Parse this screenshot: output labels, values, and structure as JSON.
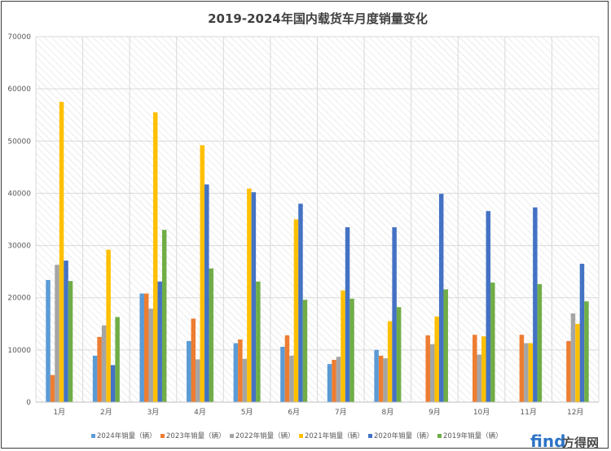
{
  "chart_data": {
    "type": "bar",
    "title": "2019-2024年国内载货车月度销量变化",
    "xlabel": "",
    "ylabel": "",
    "ylim": [
      0,
      70000
    ],
    "yticks": [
      0,
      10000,
      20000,
      30000,
      40000,
      50000,
      60000,
      70000
    ],
    "grid": true,
    "legend_position": "bottom",
    "categories": [
      "1月",
      "2月",
      "3月",
      "4月",
      "5月",
      "6月",
      "7月",
      "8月",
      "9月",
      "10月",
      "11月",
      "12月"
    ],
    "series": [
      {
        "name": "2024年销量（辆）",
        "color": "#5b9bd5",
        "values": [
          23400,
          8900,
          20800,
          11700,
          11300,
          10600,
          7300,
          10000,
          null,
          null,
          null,
          null
        ]
      },
      {
        "name": "2023年销量（辆）",
        "color": "#ed7d31",
        "values": [
          5200,
          12500,
          20800,
          16000,
          12000,
          12800,
          8100,
          8900,
          12800,
          12900,
          12900,
          11700
        ]
      },
      {
        "name": "2022年销量（辆）",
        "color": "#a5a5a5",
        "values": [
          26300,
          14700,
          17900,
          8200,
          8300,
          8900,
          8700,
          8400,
          11100,
          9100,
          11300,
          17000
        ]
      },
      {
        "name": "2021年销量（辆）",
        "color": "#ffc000",
        "values": [
          57500,
          29200,
          55500,
          49200,
          40900,
          35000,
          21400,
          15500,
          16400,
          12600,
          11300,
          15000
        ]
      },
      {
        "name": "2020年销量（辆）",
        "color": "#4472c4",
        "values": [
          27100,
          7100,
          23100,
          41700,
          40200,
          38000,
          33500,
          33500,
          39900,
          36600,
          37300,
          26500
        ]
      },
      {
        "name": "2019年销量（辆）",
        "color": "#70ad47",
        "values": [
          23200,
          16300,
          33000,
          25600,
          23100,
          19600,
          19800,
          18200,
          21600,
          22900,
          22600,
          19300
        ]
      }
    ]
  },
  "watermark": {
    "text_a": "find",
    "text_b": "方得网",
    "color_a": "#2e74c6",
    "color_b": "#4a4a4a"
  }
}
